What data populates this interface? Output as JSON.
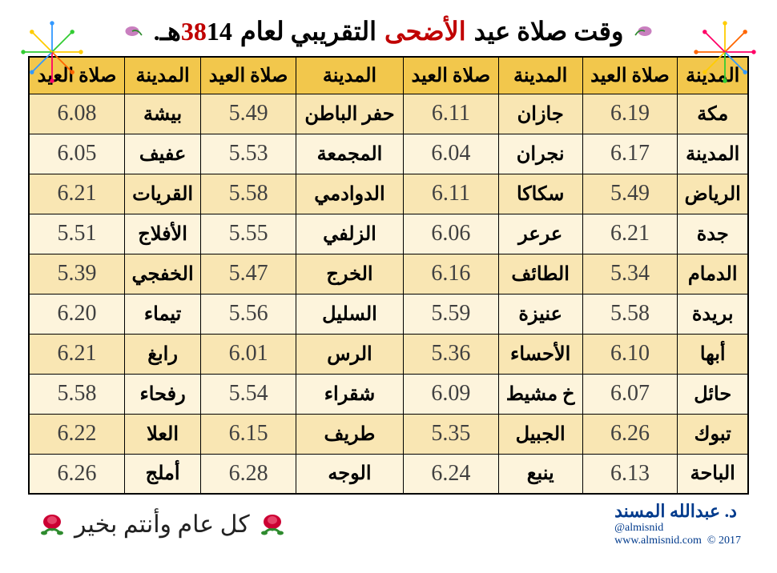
{
  "title": {
    "pre": "وقت صلاة عيد",
    "highlight": "الأضحى",
    "post": "التقريبي لعام",
    "year_plain": "14",
    "year_red": "38",
    "hijri": "هـ."
  },
  "headers": {
    "city": "المدينة",
    "time": "صلاة العيد"
  },
  "table": {
    "columns": 4,
    "header_bg": "#f2c74c",
    "row_bg_odd": "#f9e6b3",
    "row_bg_even": "#fdf4dc",
    "border_color": "#000000",
    "city_fontsize": 24,
    "time_fontsize": 28,
    "time_color": "#404040"
  },
  "rows": [
    [
      {
        "city": "مكة",
        "time": "6.19"
      },
      {
        "city": "جازان",
        "time": "6.11"
      },
      {
        "city": "حفر الباطن",
        "time": "5.49"
      },
      {
        "city": "بيشة",
        "time": "6.08"
      }
    ],
    [
      {
        "city": "المدينة",
        "time": "6.17"
      },
      {
        "city": "نجران",
        "time": "6.04"
      },
      {
        "city": "المجمعة",
        "time": "5.53"
      },
      {
        "city": "عفيف",
        "time": "6.05"
      }
    ],
    [
      {
        "city": "الرياض",
        "time": "5.49"
      },
      {
        "city": "سكاكا",
        "time": "6.11"
      },
      {
        "city": "الدوادمي",
        "time": "5.58"
      },
      {
        "city": "القريات",
        "time": "6.21"
      }
    ],
    [
      {
        "city": "جدة",
        "time": "6.21"
      },
      {
        "city": "عرعر",
        "time": "6.06"
      },
      {
        "city": "الزلفي",
        "time": "5.55"
      },
      {
        "city": "الأفلاج",
        "time": "5.51"
      }
    ],
    [
      {
        "city": "الدمام",
        "time": "5.34"
      },
      {
        "city": "الطائف",
        "time": "6.16"
      },
      {
        "city": "الخرج",
        "time": "5.47"
      },
      {
        "city": "الخفجي",
        "time": "5.39"
      }
    ],
    [
      {
        "city": "بريدة",
        "time": "5.58"
      },
      {
        "city": "عنيزة",
        "time": "5.59"
      },
      {
        "city": "السليل",
        "time": "5.56"
      },
      {
        "city": "تيماء",
        "time": "6.20"
      }
    ],
    [
      {
        "city": "أبها",
        "time": "6.10"
      },
      {
        "city": "الأحساء",
        "time": "5.36"
      },
      {
        "city": "الرس",
        "time": "6.01"
      },
      {
        "city": "رابغ",
        "time": "6.21"
      }
    ],
    [
      {
        "city": "حائل",
        "time": "6.07"
      },
      {
        "city": "خ مشيط",
        "time": "6.09"
      },
      {
        "city": "شقراء",
        "time": "5.54"
      },
      {
        "city": "رفحاء",
        "time": "5.58"
      }
    ],
    [
      {
        "city": "تبوك",
        "time": "6.26"
      },
      {
        "city": "الجبيل",
        "time": "5.35"
      },
      {
        "city": "طريف",
        "time": "6.15"
      },
      {
        "city": "العلا",
        "time": "6.22"
      }
    ],
    [
      {
        "city": "الباحة",
        "time": "6.13"
      },
      {
        "city": "ينبع",
        "time": "6.24"
      },
      {
        "city": "الوجه",
        "time": "6.28"
      },
      {
        "city": "أملج",
        "time": "6.26"
      }
    ]
  ],
  "footer": {
    "greeting": "كل عام وأنتم بخير",
    "author": "د. عبدالله المسند",
    "handle": "@almisnid",
    "site": "www.almisnid.com",
    "copyright": "© 2017"
  },
  "decor": {
    "firework_colors": [
      "#ffcc00",
      "#ff6600",
      "#ff0066",
      "#3399ff",
      "#33cc33"
    ],
    "rose_color": "#cc0033",
    "rose_leaf": "#2e8b2e"
  }
}
